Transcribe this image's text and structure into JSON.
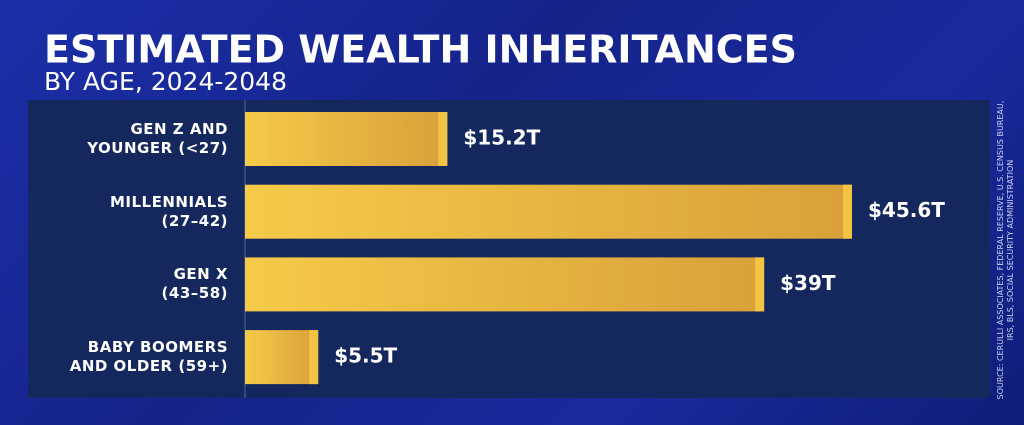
{
  "chart_data": {
    "type": "hbar",
    "title": "ESTIMATED WEALTH INHERITANCES",
    "subtitle": "BY AGE, 2024-2048",
    "categories": [
      "GEN Z AND\nYOUNGER (<27)",
      "MILLENNIALS\n(27–42)",
      "GEN X\n(43–58)",
      "BABY BOOMERS\nAND OLDER (59+)"
    ],
    "values": [
      15.2,
      45.6,
      39,
      5.5
    ],
    "value_labels": [
      "$15.2T",
      "$45.6T",
      "$39T",
      "$5.5T"
    ],
    "color": "#f2c444",
    "source": "SOURCE: CERULLI ASSOCIATES, FEDERAL RESERVE, U.S. CENSUS BUREAU, IRS, BLS, SOCIAL SECURITY ADMINISTRATION"
  }
}
